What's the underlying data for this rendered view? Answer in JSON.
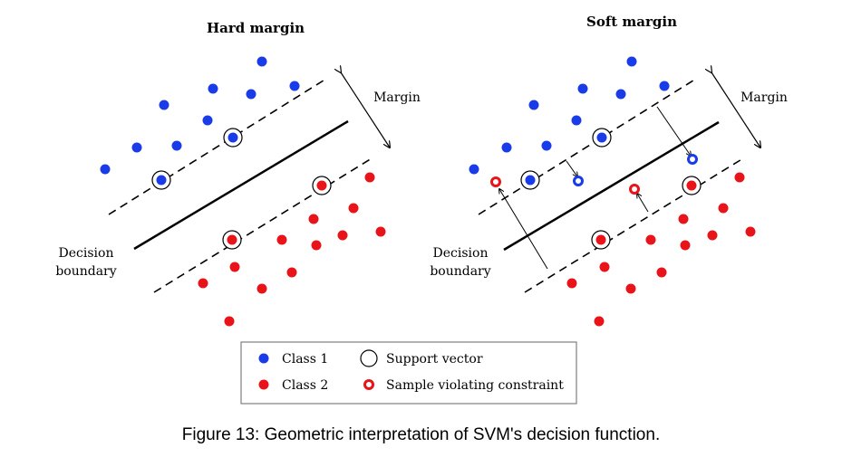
{
  "panels": {
    "hard": {
      "title": "Hard margin",
      "margin_label": "Margin",
      "boundary_label_1": "Decision",
      "boundary_label_2": "boundary"
    },
    "soft": {
      "title": "Soft margin",
      "margin_label": "Margin",
      "boundary_label_1": "Decision",
      "boundary_label_2": "boundary"
    }
  },
  "legend": {
    "class1": "Class 1",
    "class2": "Class 2",
    "support_vector": "Support vector",
    "violating": "Sample violating constraint"
  },
  "colors": {
    "class1": "#1a3be8",
    "class2": "#e8141a",
    "line": "#000000"
  },
  "caption": "Figure 13: Geometric interpretation  of SVM's decision function."
}
